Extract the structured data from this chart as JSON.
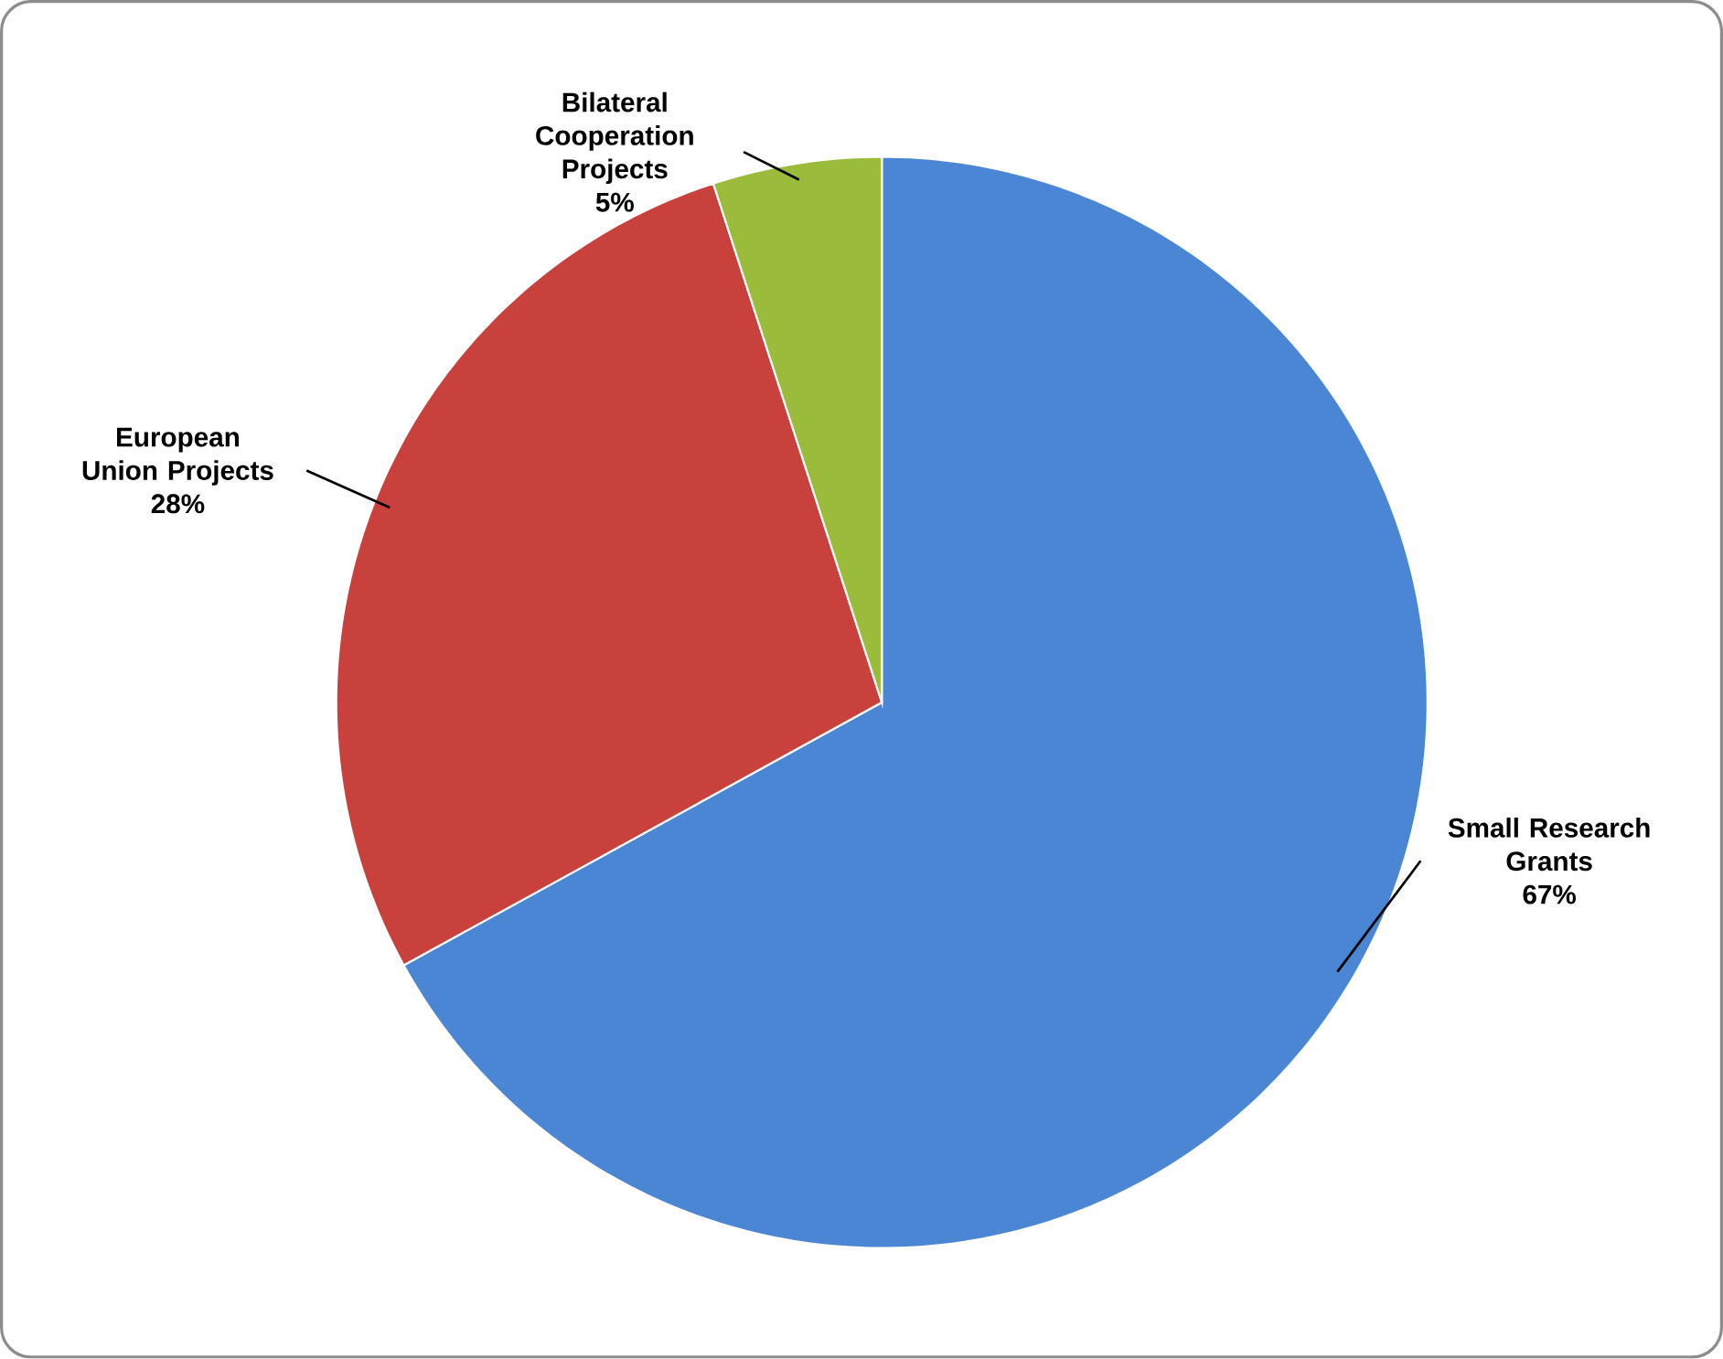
{
  "chart_data": {
    "type": "pie",
    "categories": [
      "Small Research Grants",
      "European Union Projects",
      "Bilateral Cooperation Projects"
    ],
    "values": [
      67,
      28,
      5
    ],
    "value_labels": [
      "67%",
      "28%",
      "5%"
    ],
    "colors": [
      "#4a86d4",
      "#c9413c",
      "#9bbb3b"
    ]
  }
}
